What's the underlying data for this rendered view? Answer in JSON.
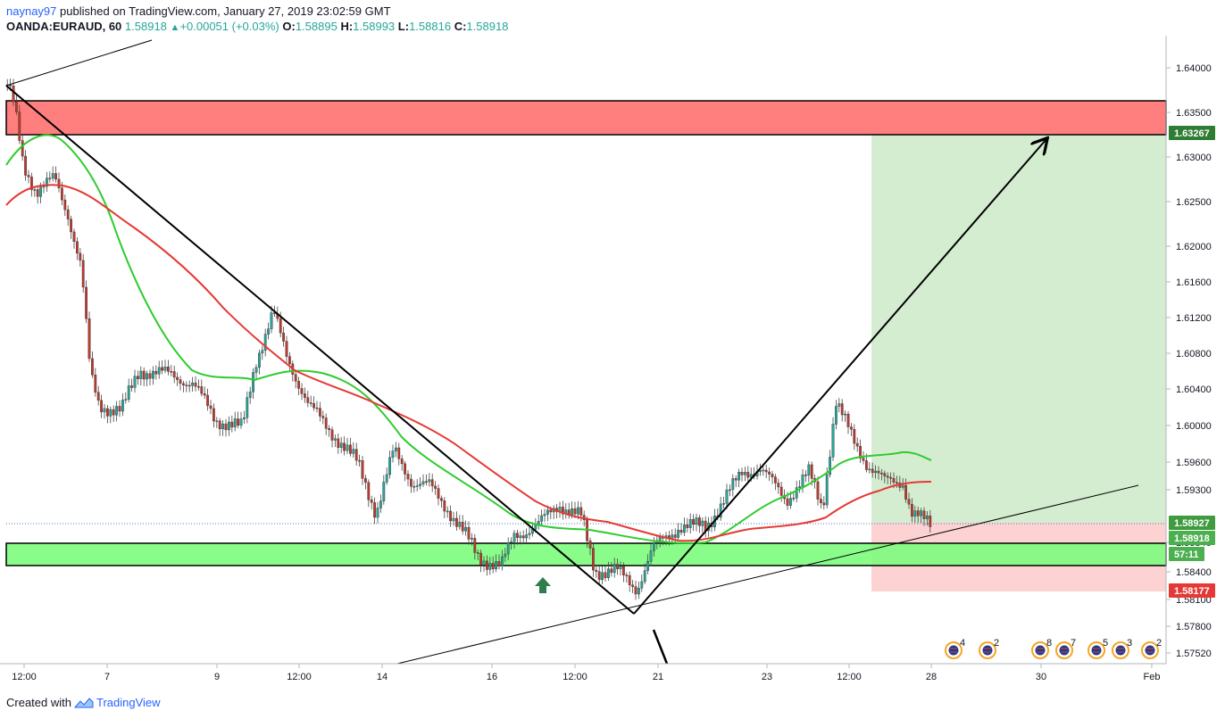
{
  "header": {
    "user": "naynay97",
    "published_text": "published on TradingView.com, January 27, 2019 23:02:59 GMT",
    "symbol": "OANDA:EURAUD, 60",
    "last": "1.58918",
    "change": "+0.00051 (+0.03%)",
    "open_label": "O:",
    "open": "1.58895",
    "high_label": "H:",
    "high": "1.58993",
    "low_label": "L:",
    "low": "1.58816",
    "close_label": "C:",
    "close": "1.58918"
  },
  "price_axis": {
    "ticks": [
      "1.64000",
      "1.63500",
      "1.63000",
      "1.62500",
      "1.62000",
      "1.61600",
      "1.61200",
      "1.60800",
      "1.60400",
      "1.60000",
      "1.59600",
      "1.59300",
      "1.58840",
      "1.58400",
      "1.58100",
      "1.57800",
      "1.57520"
    ],
    "tags": [
      {
        "label": "1.63267",
        "color": "#2e7d32"
      },
      {
        "label": "1.58927",
        "color": "#3f9b3f"
      },
      {
        "label": "1.58918",
        "color": "#4caf50"
      },
      {
        "label": "57:11",
        "color": "#4caf50"
      },
      {
        "label": "1.58177",
        "color": "#e53935"
      }
    ]
  },
  "time_axis": {
    "ticks": [
      "12:00",
      "7",
      "9",
      "12:00",
      "14",
      "16",
      "12:00",
      "21",
      "23",
      "12:00",
      "28",
      "30",
      "Feb"
    ]
  },
  "events": [
    {
      "count": "4"
    },
    {
      "count": "2"
    },
    {
      "count": "8"
    },
    {
      "count": "7"
    },
    {
      "count": "5"
    },
    {
      "count": "3"
    },
    {
      "count": "2"
    }
  ],
  "footer": {
    "created_with": "Created with",
    "brand": "TradingView"
  },
  "colors": {
    "resistance_zone": "#ff7f7f",
    "support_zone": "#7dfc7d",
    "target_zone": "#d4edd0",
    "stop_zone": "#fcd2d2",
    "ma_fast": "#2ecc2e",
    "ma_slow": "#e53935",
    "candle_up": "#26a69a",
    "candle_down": "#c0392b"
  }
}
